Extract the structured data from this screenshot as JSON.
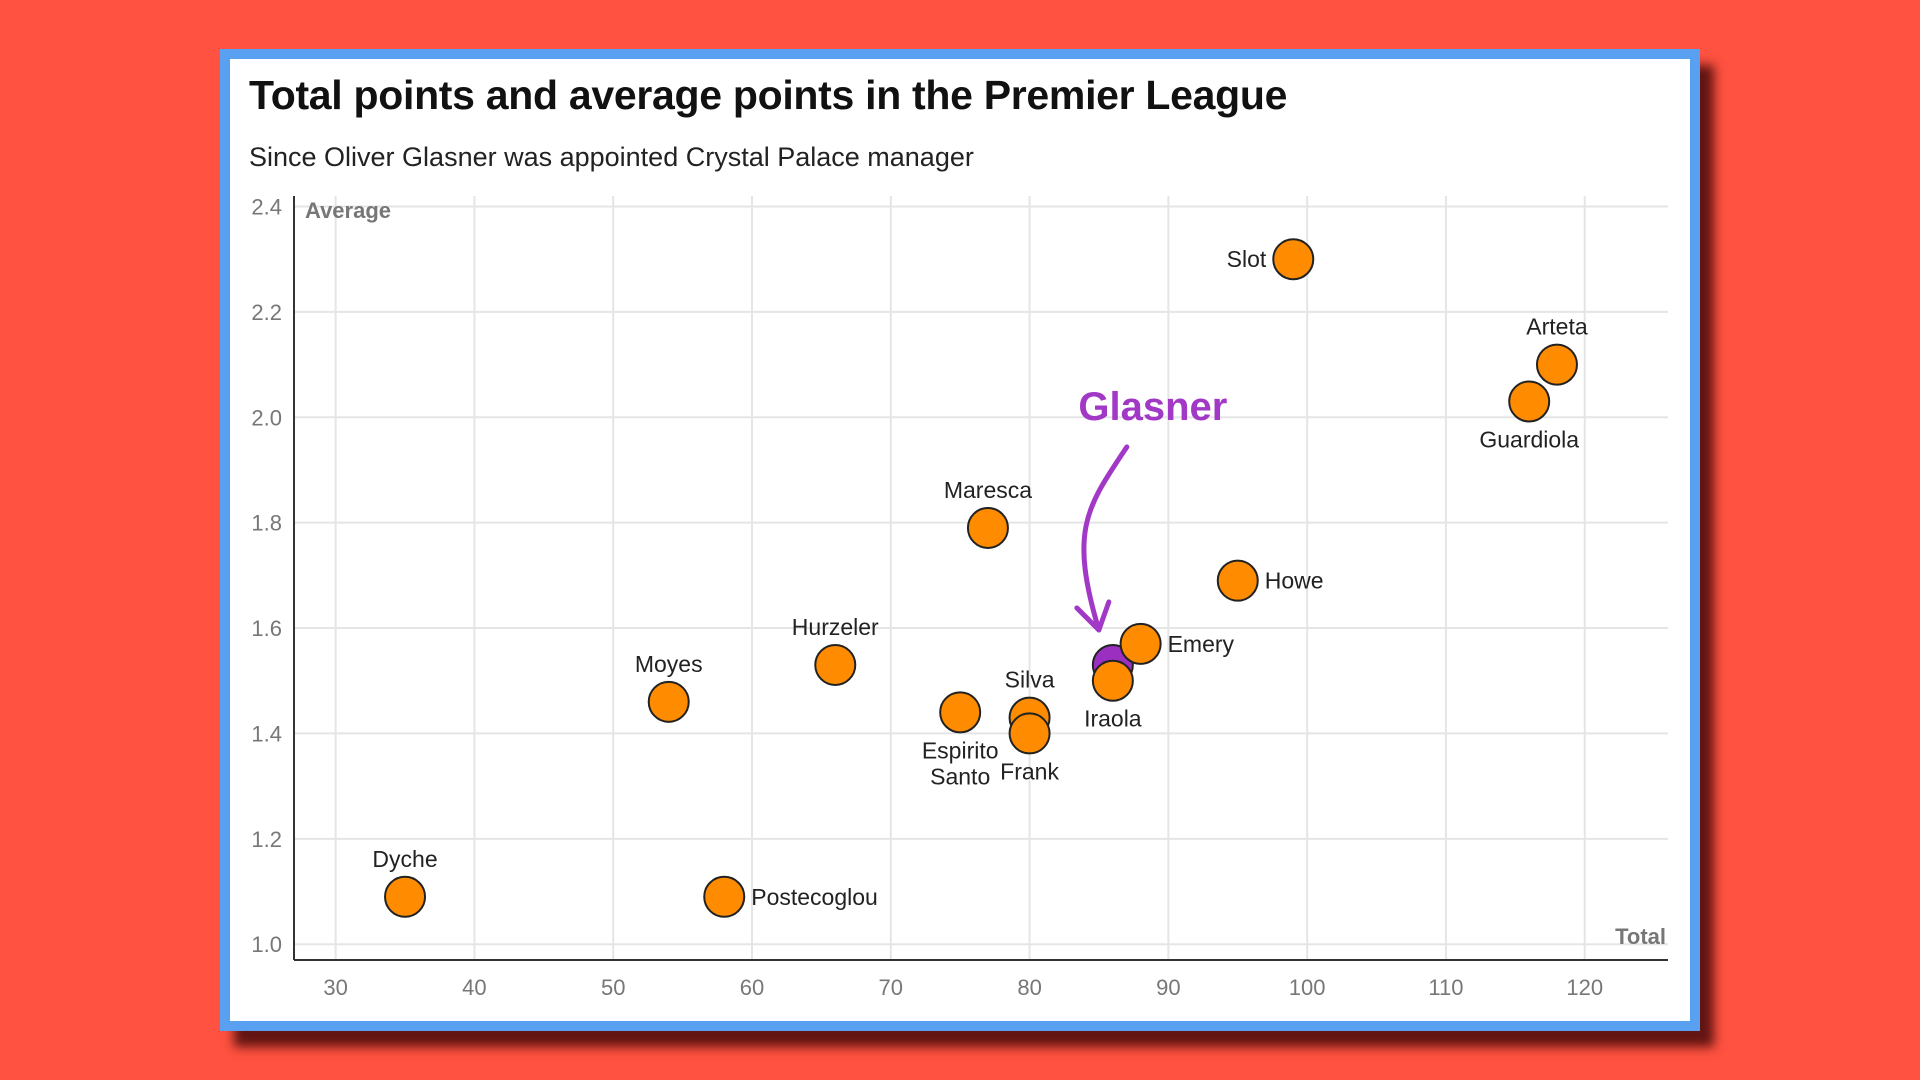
{
  "chart_data": {
    "type": "scatter",
    "title": "Total points and average points in the Premier League",
    "subtitle": "Since Oliver Glasner was appointed Crystal Palace manager",
    "xlabel": "Total",
    "ylabel": "Average",
    "xlim": [
      27,
      126
    ],
    "ylim": [
      0.97,
      2.42
    ],
    "xticks": [
      "30",
      "40",
      "50",
      "60",
      "70",
      "80",
      "90",
      "100",
      "110",
      "120"
    ],
    "yticks": [
      "1.0",
      "1.2",
      "1.4",
      "1.6",
      "1.8",
      "2.0",
      "2.2",
      "2.4"
    ],
    "grid": true,
    "points": [
      {
        "name": "Slot",
        "x": 99,
        "y": 2.3,
        "label_pos": "left"
      },
      {
        "name": "Arteta",
        "x": 118,
        "y": 2.1,
        "label_pos": "top"
      },
      {
        "name": "Guardiola",
        "x": 116,
        "y": 2.03,
        "label_pos": "bottom"
      },
      {
        "name": "Maresca",
        "x": 77,
        "y": 1.79,
        "label_pos": "top"
      },
      {
        "name": "Howe",
        "x": 95,
        "y": 1.69,
        "label_pos": "right"
      },
      {
        "name": "Emery",
        "x": 88,
        "y": 1.57,
        "label_pos": "right"
      },
      {
        "name": "Hurzeler",
        "x": 66,
        "y": 1.53,
        "label_pos": "top"
      },
      {
        "name": "Glasner",
        "x": 86,
        "y": 1.53,
        "highlight": true
      },
      {
        "name": "Iraola",
        "x": 86,
        "y": 1.5,
        "label_pos": "bottom"
      },
      {
        "name": "Moyes",
        "x": 54,
        "y": 1.46,
        "label_pos": "top"
      },
      {
        "name": "Espirito Santo",
        "x": 75,
        "y": 1.44,
        "label_pos": "bottom",
        "label_lines": [
          "Espirito",
          "Santo"
        ]
      },
      {
        "name": "Silva",
        "x": 80,
        "y": 1.43,
        "label_pos": "top"
      },
      {
        "name": "Frank",
        "x": 80,
        "y": 1.4,
        "label_pos": "bottom"
      },
      {
        "name": "Dyche",
        "x": 35,
        "y": 1.09,
        "label_pos": "top"
      },
      {
        "name": "Postecoglou",
        "x": 58,
        "y": 1.09,
        "label_pos": "right"
      }
    ],
    "highlight_label": "Glasner",
    "colors": {
      "point_fill": "#ff8c00",
      "highlight_fill": "#9b2fc0",
      "highlight_text": "#a238c6",
      "grid": "#e5e5e5",
      "axis": "#333333"
    }
  }
}
